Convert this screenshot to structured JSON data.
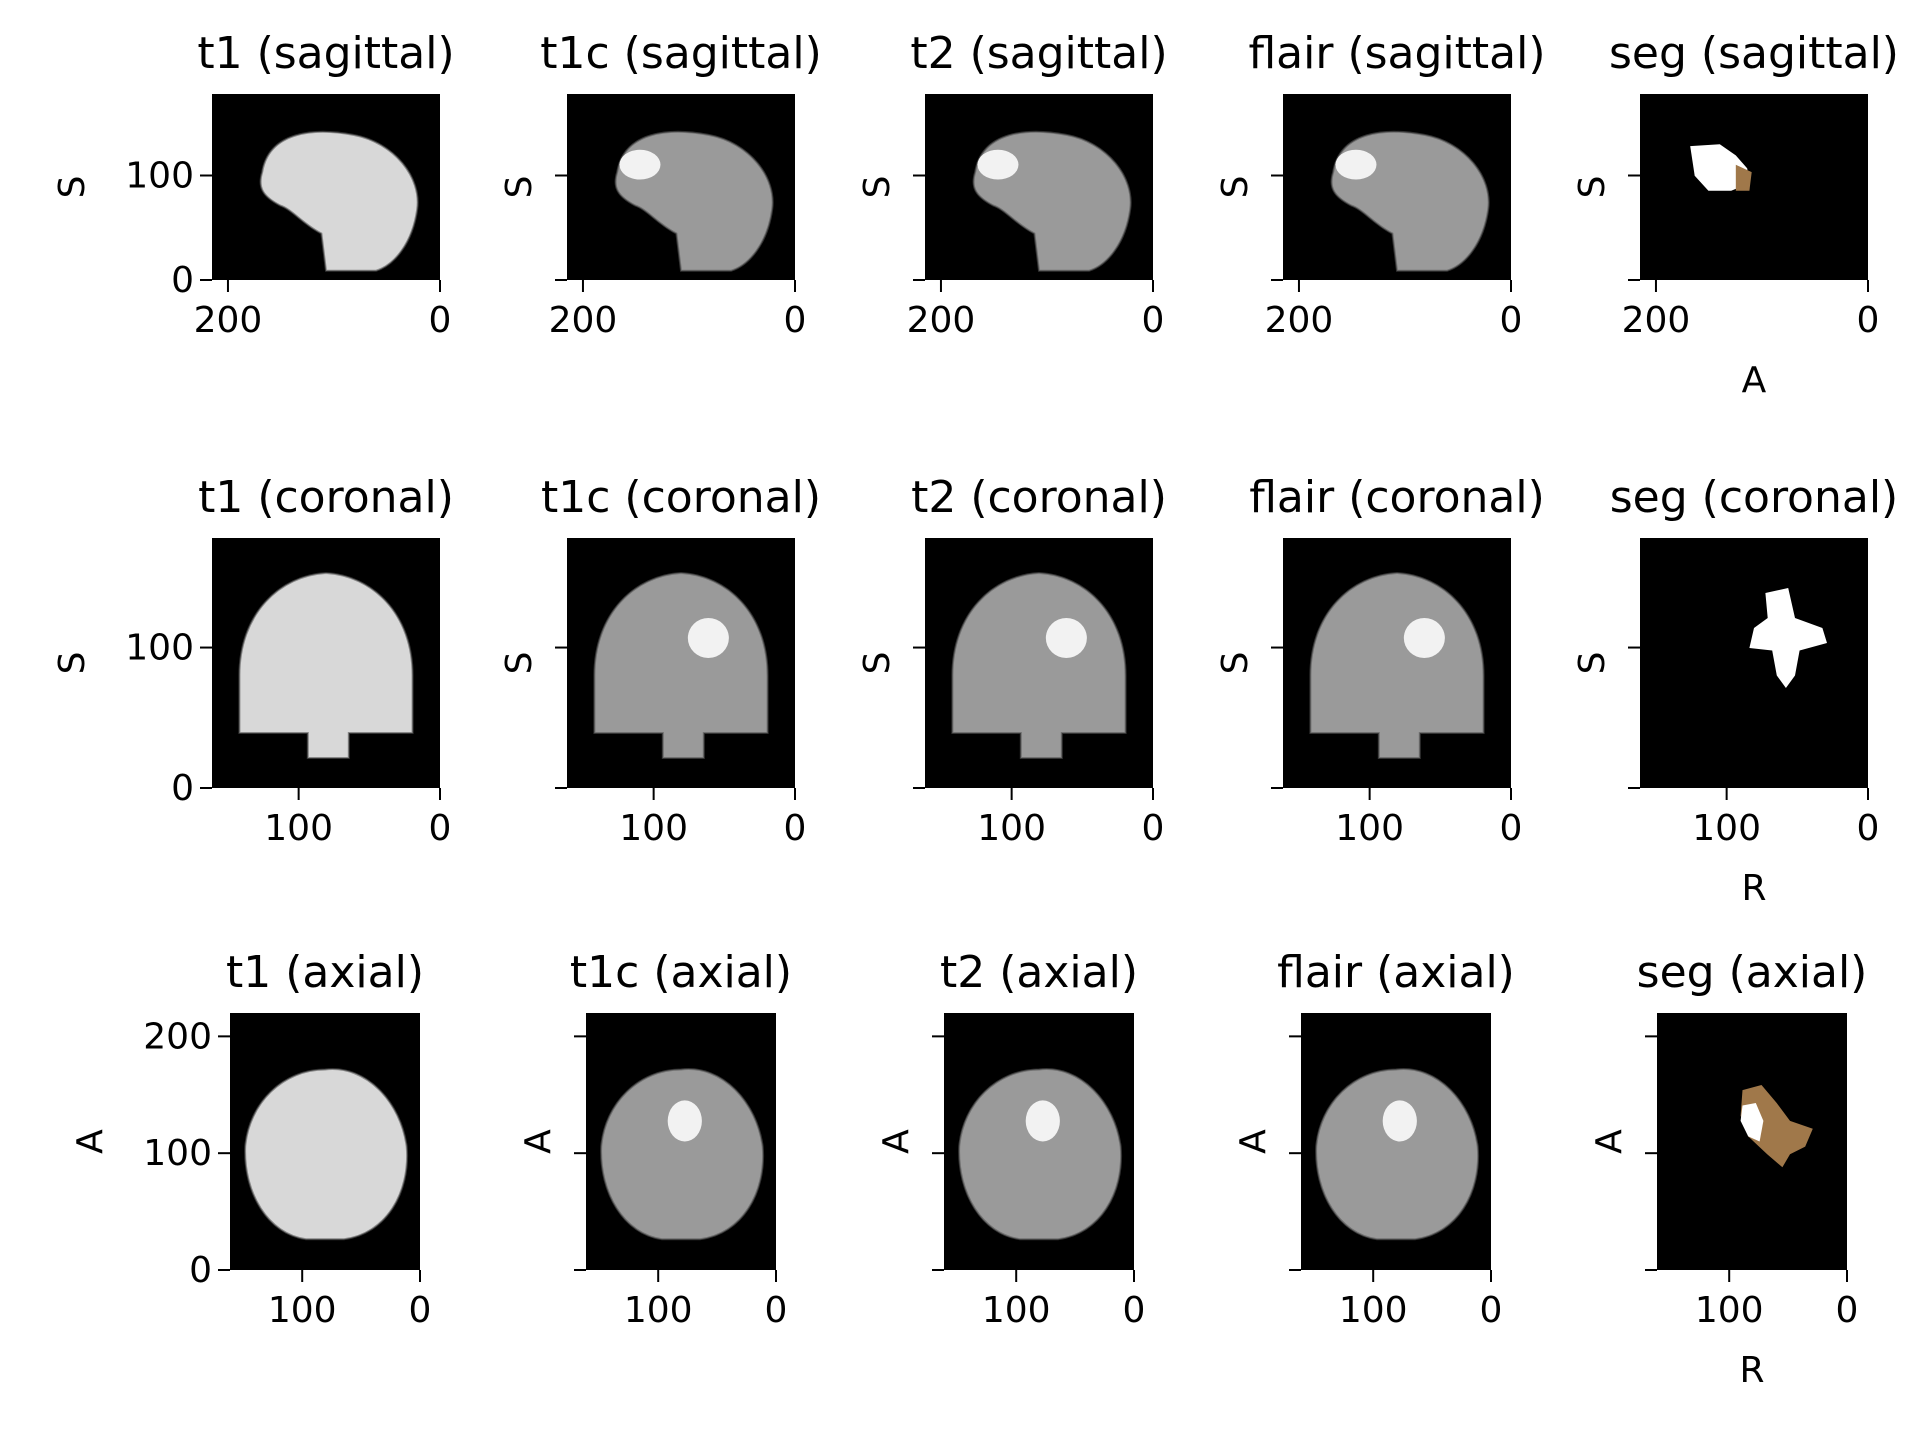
{
  "figure": {
    "rows": [
      {
        "view": "sagittal",
        "vertical_axis": "S",
        "horizontal_axis": "A",
        "y_ticks": [
          "0",
          "100"
        ],
        "x_ticks": [
          "200",
          "0"
        ],
        "panels": [
          {
            "title": "t1 (sagittal)",
            "kind": "t1"
          },
          {
            "title": "t1c (sagittal)",
            "kind": "t1c"
          },
          {
            "title": "t2 (sagittal)",
            "kind": "t2"
          },
          {
            "title": "flair (sagittal)",
            "kind": "flair"
          },
          {
            "title": "seg (sagittal)",
            "kind": "seg"
          }
        ]
      },
      {
        "view": "coronal",
        "vertical_axis": "S",
        "horizontal_axis": "R",
        "y_ticks": [
          "0",
          "100"
        ],
        "x_ticks": [
          "100",
          "0"
        ],
        "panels": [
          {
            "title": "t1 (coronal)",
            "kind": "t1"
          },
          {
            "title": "t1c (coronal)",
            "kind": "t1c"
          },
          {
            "title": "t2 (coronal)",
            "kind": "t2"
          },
          {
            "title": "flair (coronal)",
            "kind": "flair"
          },
          {
            "title": "seg (coronal)",
            "kind": "seg"
          }
        ]
      },
      {
        "view": "axial",
        "vertical_axis": "A",
        "horizontal_axis": "R",
        "y_ticks": [
          "0",
          "100",
          "200"
        ],
        "x_ticks": [
          "100",
          "0"
        ],
        "panels": [
          {
            "title": "t1 (axial)",
            "kind": "t1"
          },
          {
            "title": "t1c (axial)",
            "kind": "t1c"
          },
          {
            "title": "t2 (axial)",
            "kind": "t2"
          },
          {
            "title": "flair (axial)",
            "kind": "flair"
          },
          {
            "title": "seg (axial)",
            "kind": "seg"
          }
        ]
      }
    ],
    "colors": {
      "background": "#000000",
      "tissue_light": "#d8d8d8",
      "tissue_mid": "#9a9a9a",
      "seg_white": "#ffffff",
      "seg_brown": "#a0784a"
    }
  }
}
